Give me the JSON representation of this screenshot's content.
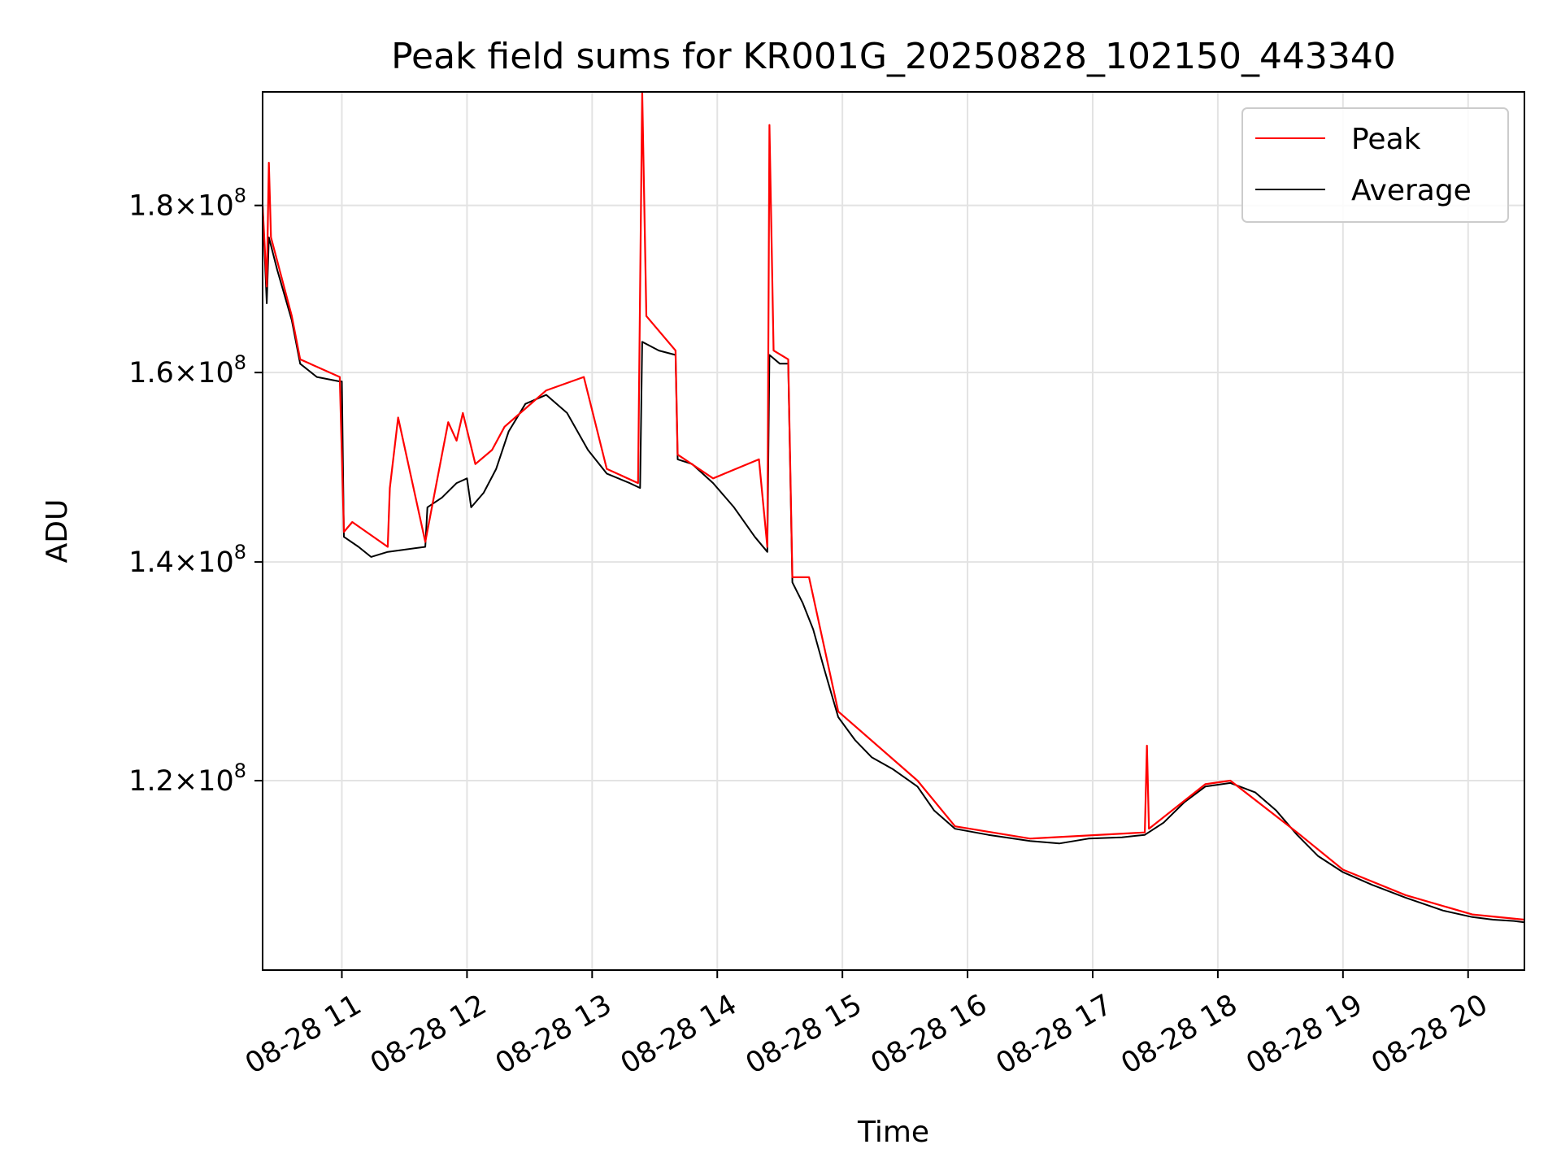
{
  "chart_data": {
    "type": "line",
    "title": "Peak field sums for KR001G_20250828_102150_443340",
    "xlabel": "Time",
    "ylabel": "ADU",
    "y_scale": "log",
    "xlim": [
      "2025-08-28 10:22",
      "2025-08-28 20:27"
    ],
    "ylim": [
      105000000.0,
      195000000.0
    ],
    "grid": true,
    "legend_position": "top-right",
    "x_ticks": [
      {
        "label": "08-28 11",
        "time": "2025-08-28 11:00"
      },
      {
        "label": "08-28 12",
        "time": "2025-08-28 12:00"
      },
      {
        "label": "08-28 13",
        "time": "2025-08-28 13:00"
      },
      {
        "label": "08-28 14",
        "time": "2025-08-28 14:00"
      },
      {
        "label": "08-28 15",
        "time": "2025-08-28 15:00"
      },
      {
        "label": "08-28 16",
        "time": "2025-08-28 16:00"
      },
      {
        "label": "08-28 17",
        "time": "2025-08-28 17:00"
      },
      {
        "label": "08-28 18",
        "time": "2025-08-28 18:00"
      },
      {
        "label": "08-28 19",
        "time": "2025-08-28 19:00"
      },
      {
        "label": "08-28 20",
        "time": "2025-08-28 20:00"
      }
    ],
    "y_ticks": [
      {
        "mantissa": "1.2",
        "exponent": "8",
        "value": 120000000.0
      },
      {
        "mantissa": "1.4",
        "exponent": "8",
        "value": 140000000.0
      },
      {
        "mantissa": "1.6",
        "exponent": "8",
        "value": 160000000.0
      },
      {
        "mantissa": "1.8",
        "exponent": "8",
        "value": 180000000.0
      }
    ],
    "series": [
      {
        "name": "Average",
        "color": "#000000",
        "points": [
          [
            "2025-08-28 10:22",
            180000000.0
          ],
          [
            "2025-08-28 10:24",
            168000000.0
          ],
          [
            "2025-08-28 10:25",
            176000000.0
          ],
          [
            "2025-08-28 10:29",
            172000000.0
          ],
          [
            "2025-08-28 10:36",
            166000000.0
          ],
          [
            "2025-08-28 10:40",
            161000000.0
          ],
          [
            "2025-08-28 10:48",
            159500000.0
          ],
          [
            "2025-08-28 10:59",
            159000000.0
          ],
          [
            "2025-08-28 11:00",
            159000000.0
          ],
          [
            "2025-08-28 11:01",
            142500000.0
          ],
          [
            "2025-08-28 11:08",
            141500000.0
          ],
          [
            "2025-08-28 11:14",
            140500000.0
          ],
          [
            "2025-08-28 11:22",
            141000000.0
          ],
          [
            "2025-08-28 11:40",
            141500000.0
          ],
          [
            "2025-08-28 11:41",
            145500000.0
          ],
          [
            "2025-08-28 11:48",
            146500000.0
          ],
          [
            "2025-08-28 11:55",
            148000000.0
          ],
          [
            "2025-08-28 12:00",
            148500000.0
          ],
          [
            "2025-08-28 12:02",
            145500000.0
          ],
          [
            "2025-08-28 12:08",
            147000000.0
          ],
          [
            "2025-08-28 12:14",
            149500000.0
          ],
          [
            "2025-08-28 12:20",
            153500000.0
          ],
          [
            "2025-08-28 12:28",
            156500000.0
          ],
          [
            "2025-08-28 12:38",
            157500000.0
          ],
          [
            "2025-08-28 12:48",
            155500000.0
          ],
          [
            "2025-08-28 12:58",
            151500000.0
          ],
          [
            "2025-08-28 13:07",
            149000000.0
          ],
          [
            "2025-08-28 13:18",
            148000000.0
          ],
          [
            "2025-08-28 13:23",
            147500000.0
          ],
          [
            "2025-08-28 13:24",
            163500000.0
          ],
          [
            "2025-08-28 13:32",
            162500000.0
          ],
          [
            "2025-08-28 13:40",
            162000000.0
          ],
          [
            "2025-08-28 13:41",
            150500000.0
          ],
          [
            "2025-08-28 13:48",
            150000000.0
          ],
          [
            "2025-08-28 13:58",
            148000000.0
          ],
          [
            "2025-08-28 14:08",
            145500000.0
          ],
          [
            "2025-08-28 14:18",
            142500000.0
          ],
          [
            "2025-08-28 14:24",
            141000000.0
          ],
          [
            "2025-08-28 14:25",
            162000000.0
          ],
          [
            "2025-08-28 14:30",
            161000000.0
          ],
          [
            "2025-08-28 14:34",
            161000000.0
          ],
          [
            "2025-08-28 14:36",
            138000000.0
          ],
          [
            "2025-08-28 14:41",
            136000000.0
          ],
          [
            "2025-08-28 14:46",
            133500000.0
          ],
          [
            "2025-08-28 14:51",
            130000000.0
          ],
          [
            "2025-08-28 14:58",
            125500000.0
          ],
          [
            "2025-08-28 15:06",
            123500000.0
          ],
          [
            "2025-08-28 15:14",
            122000000.0
          ],
          [
            "2025-08-28 15:24",
            121000000.0
          ],
          [
            "2025-08-28 15:36",
            119500000.0
          ],
          [
            "2025-08-28 15:44",
            117500000.0
          ],
          [
            "2025-08-28 15:54",
            116000000.0
          ],
          [
            "2025-08-28 16:10",
            115500000.0
          ],
          [
            "2025-08-28 16:30",
            115000000.0
          ],
          [
            "2025-08-28 16:44",
            114800000.0
          ],
          [
            "2025-08-28 16:58",
            115200000.0
          ],
          [
            "2025-08-28 17:14",
            115300000.0
          ],
          [
            "2025-08-28 17:25",
            115500000.0
          ],
          [
            "2025-08-28 17:34",
            116500000.0
          ],
          [
            "2025-08-28 17:44",
            118200000.0
          ],
          [
            "2025-08-28 17:54",
            119500000.0
          ],
          [
            "2025-08-28 18:06",
            119800000.0
          ],
          [
            "2025-08-28 18:18",
            119000000.0
          ],
          [
            "2025-08-28 18:28",
            117500000.0
          ],
          [
            "2025-08-28 18:38",
            115500000.0
          ],
          [
            "2025-08-28 18:48",
            113800000.0
          ],
          [
            "2025-08-28 19:00",
            112500000.0
          ],
          [
            "2025-08-28 19:14",
            111500000.0
          ],
          [
            "2025-08-28 19:30",
            110500000.0
          ],
          [
            "2025-08-28 19:48",
            109500000.0
          ],
          [
            "2025-08-28 20:02",
            109000000.0
          ],
          [
            "2025-08-28 20:12",
            108800000.0
          ],
          [
            "2025-08-28 20:22",
            108700000.0
          ],
          [
            "2025-08-28 20:27",
            108600000.0
          ]
        ]
      },
      {
        "name": "Peak",
        "color": "#ff0000",
        "points": [
          [
            "2025-08-28 10:22",
            180000000.0
          ],
          [
            "2025-08-28 10:24",
            170000000.0
          ],
          [
            "2025-08-28 10:25",
            185500000.0
          ],
          [
            "2025-08-28 10:26",
            176000000.0
          ],
          [
            "2025-08-28 10:36",
            166500000.0
          ],
          [
            "2025-08-28 10:40",
            161500000.0
          ],
          [
            "2025-08-28 10:59",
            159500000.0
          ],
          [
            "2025-08-28 11:01",
            143000000.0
          ],
          [
            "2025-08-28 11:05",
            144000000.0
          ],
          [
            "2025-08-28 11:22",
            141500000.0
          ],
          [
            "2025-08-28 11:23",
            147500000.0
          ],
          [
            "2025-08-28 11:27",
            155000000.0
          ],
          [
            "2025-08-28 11:40",
            142000000.0
          ],
          [
            "2025-08-28 11:48",
            151000000.0
          ],
          [
            "2025-08-28 11:51",
            154500000.0
          ],
          [
            "2025-08-28 11:55",
            152500000.0
          ],
          [
            "2025-08-28 11:58",
            155500000.0
          ],
          [
            "2025-08-28 12:04",
            150000000.0
          ],
          [
            "2025-08-28 12:12",
            151500000.0
          ],
          [
            "2025-08-28 12:18",
            154000000.0
          ],
          [
            "2025-08-28 12:38",
            158000000.0
          ],
          [
            "2025-08-28 12:56",
            159500000.0
          ],
          [
            "2025-08-28 13:07",
            149500000.0
          ],
          [
            "2025-08-28 13:22",
            148000000.0
          ],
          [
            "2025-08-28 13:24",
            195000000.0
          ],
          [
            "2025-08-28 13:26",
            166500000.0
          ],
          [
            "2025-08-28 13:40",
            162500000.0
          ],
          [
            "2025-08-28 13:41",
            151000000.0
          ],
          [
            "2025-08-28 13:58",
            148500000.0
          ],
          [
            "2025-08-28 14:20",
            150500000.0
          ],
          [
            "2025-08-28 14:24",
            141500000.0
          ],
          [
            "2025-08-28 14:25",
            190500000.0
          ],
          [
            "2025-08-28 14:27",
            162500000.0
          ],
          [
            "2025-08-28 14:34",
            161500000.0
          ],
          [
            "2025-08-28 14:36",
            138500000.0
          ],
          [
            "2025-08-28 14:44",
            138500000.0
          ],
          [
            "2025-08-28 14:58",
            126000000.0
          ],
          [
            "2025-08-28 15:36",
            120000000.0
          ],
          [
            "2025-08-28 15:54",
            116200000.0
          ],
          [
            "2025-08-28 16:30",
            115200000.0
          ],
          [
            "2025-08-28 17:25",
            115700000.0
          ],
          [
            "2025-08-28 17:26",
            123000000.0
          ],
          [
            "2025-08-28 17:27",
            116000000.0
          ],
          [
            "2025-08-28 17:54",
            119700000.0
          ],
          [
            "2025-08-28 18:06",
            120000000.0
          ],
          [
            "2025-08-28 18:38",
            115700000.0
          ],
          [
            "2025-08-28 19:00",
            112700000.0
          ],
          [
            "2025-08-28 19:30",
            110700000.0
          ],
          [
            "2025-08-28 20:02",
            109200000.0
          ],
          [
            "2025-08-28 20:27",
            108800000.0
          ]
        ]
      }
    ]
  },
  "legend": {
    "items": [
      {
        "label": "Peak",
        "color": "#ff0000"
      },
      {
        "label": "Average",
        "color": "#000000"
      }
    ]
  }
}
